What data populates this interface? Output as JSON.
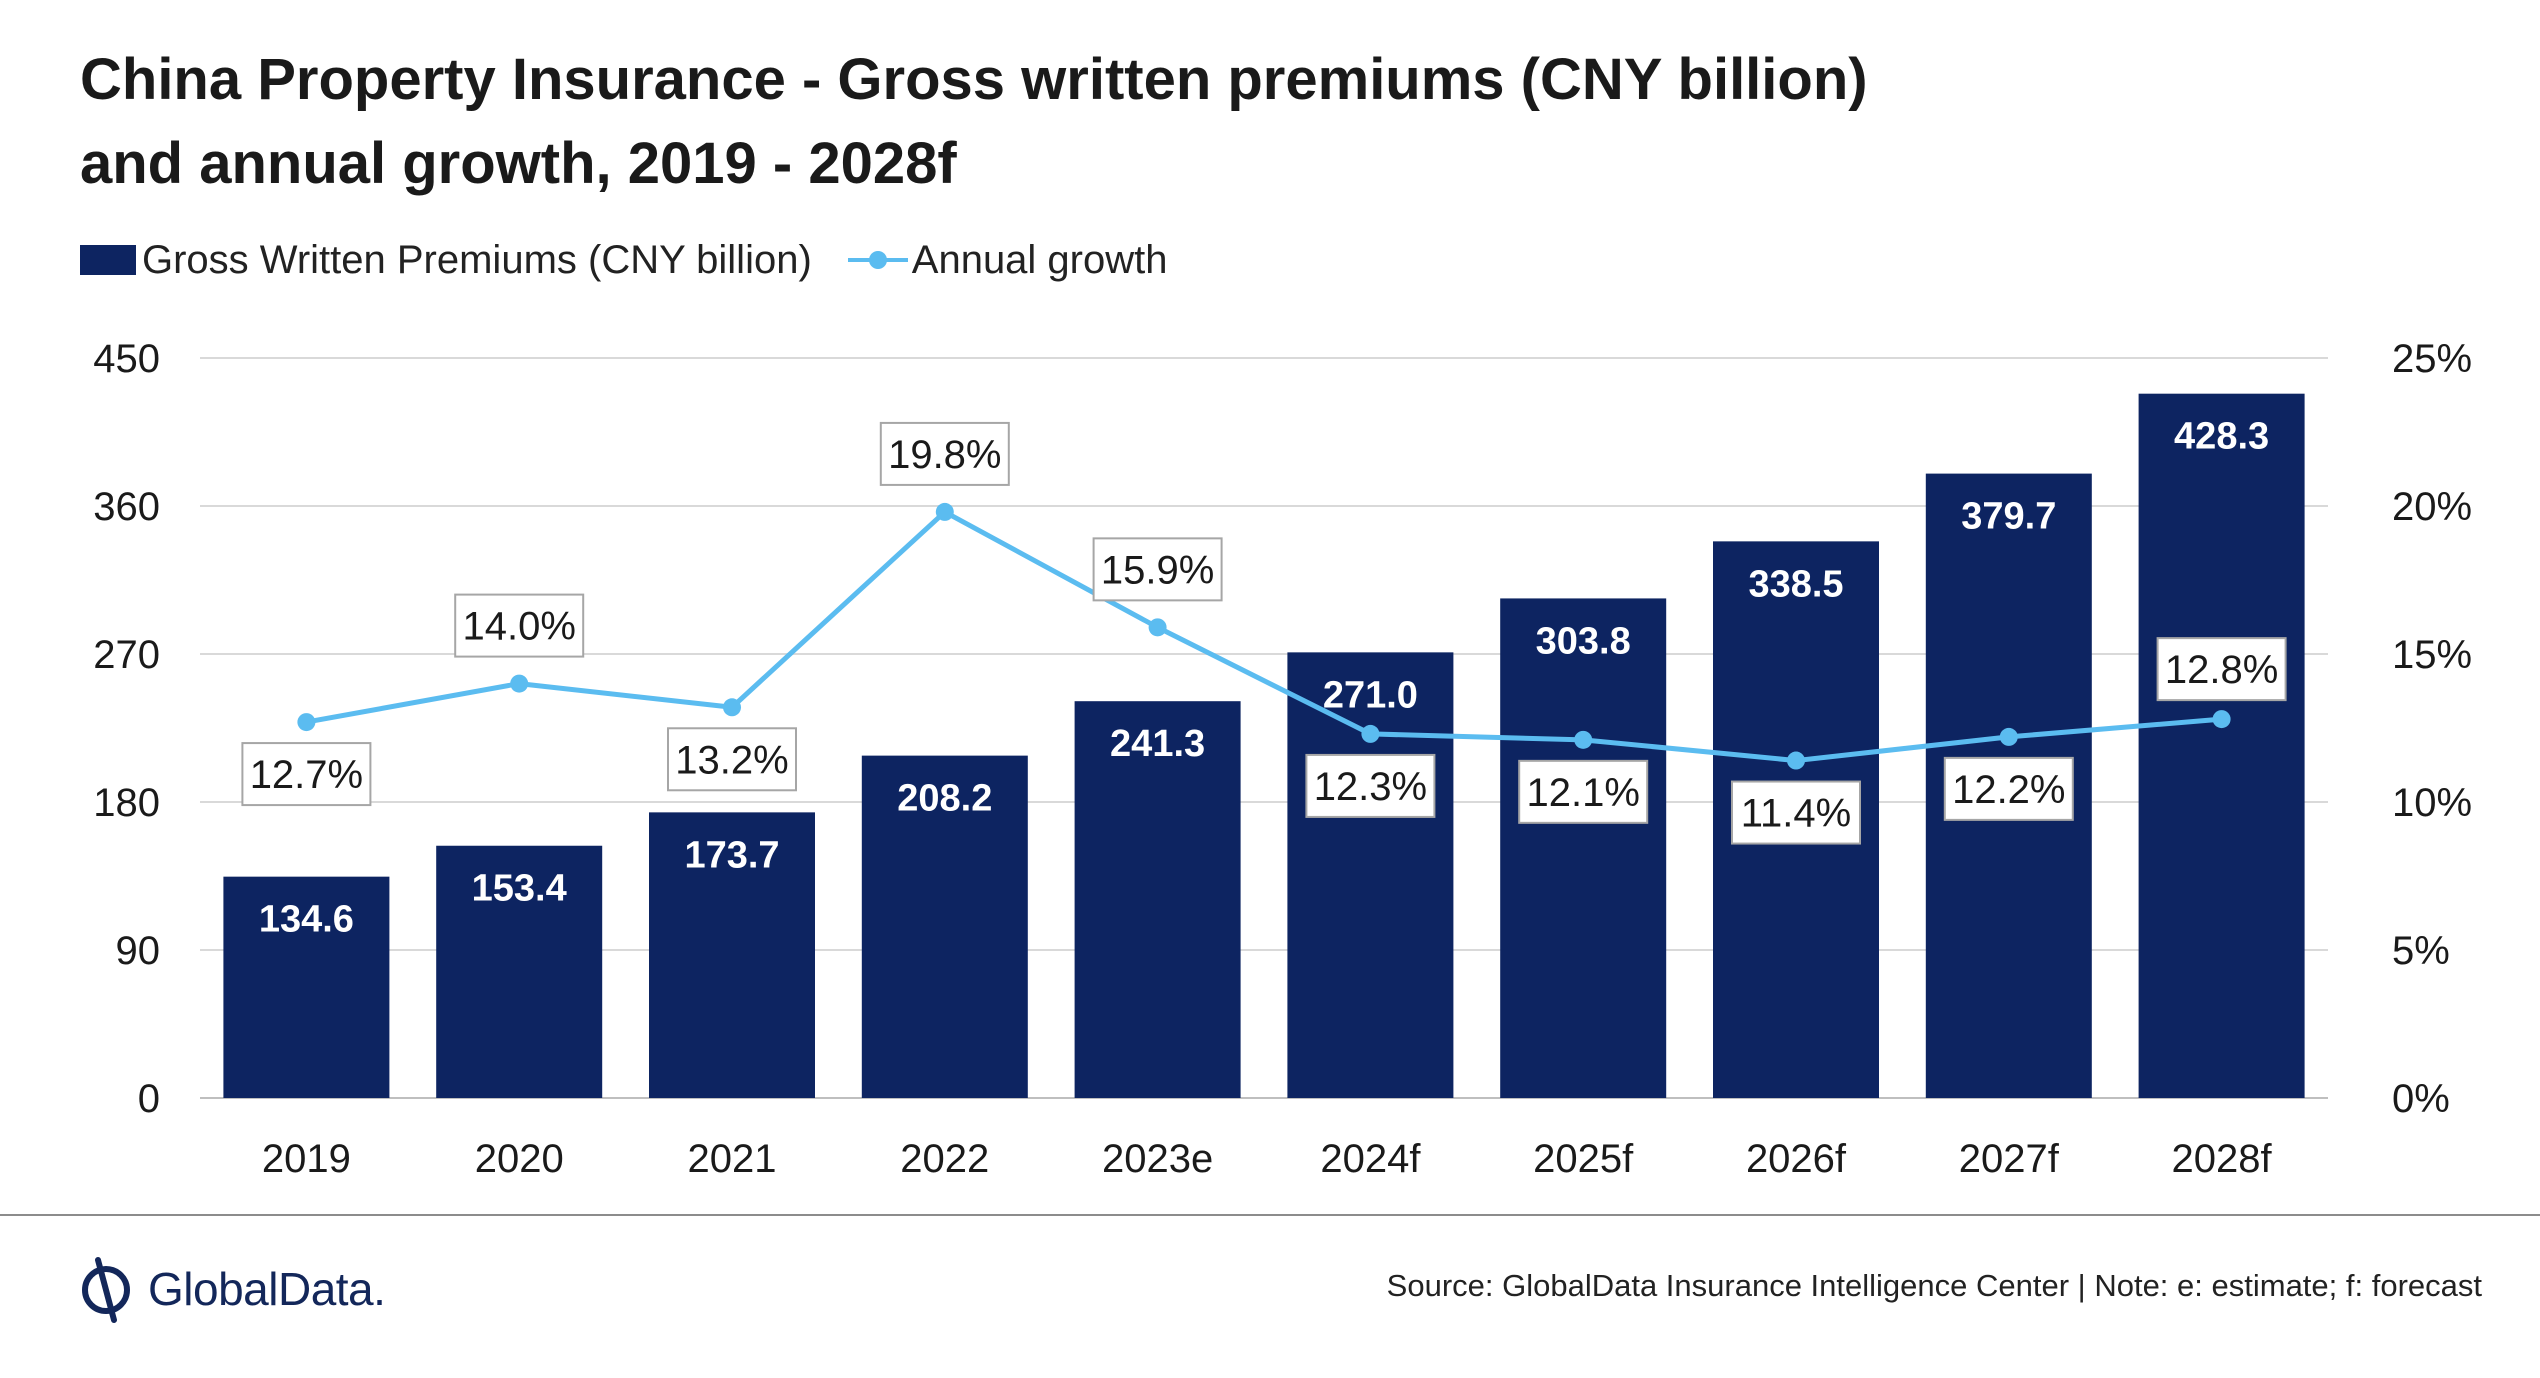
{
  "title_line1": "China Property Insurance - Gross written premiums (CNY billion)",
  "title_line2": "and annual growth, 2019 - 2028f",
  "legend": {
    "bars": "Gross Written Premiums (CNY billion)",
    "line": "Annual growth"
  },
  "colors": {
    "bar": "#0d2461",
    "line": "#5bbcf0",
    "logo": "#13275a"
  },
  "chart_data": {
    "type": "bar",
    "categories": [
      "2019",
      "2020",
      "2021",
      "2022",
      "2023e",
      "2024f",
      "2025f",
      "2026f",
      "2027f",
      "2028f"
    ],
    "series": [
      {
        "name": "Gross Written Premiums (CNY billion)",
        "type": "bar",
        "axis": "left",
        "values": [
          134.6,
          153.4,
          173.7,
          208.2,
          241.3,
          271.0,
          303.8,
          338.5,
          379.7,
          428.3
        ],
        "labels": [
          "134.6",
          "153.4",
          "173.7",
          "208.2",
          "241.3",
          "271.0",
          "303.8",
          "338.5",
          "379.7",
          "428.3"
        ]
      },
      {
        "name": "Annual growth",
        "type": "line",
        "axis": "right",
        "values": [
          12.7,
          14.0,
          13.2,
          19.8,
          15.9,
          12.3,
          12.1,
          11.4,
          12.2,
          12.8
        ],
        "labels": [
          "12.7%",
          "14.0%",
          "13.2%",
          "19.8%",
          "15.9%",
          "12.3%",
          "12.1%",
          "11.4%",
          "12.2%",
          "12.8%"
        ]
      }
    ],
    "y_left": {
      "min": 0,
      "max": 450,
      "ticks": [
        "0",
        "90",
        "180",
        "270",
        "360",
        "450"
      ]
    },
    "y_right": {
      "min": 0,
      "max": 25,
      "ticks": [
        "0%",
        "5%",
        "10%",
        "15%",
        "20%",
        "25%"
      ]
    },
    "grid": true,
    "legend_position": "top-left"
  },
  "logo": {
    "text": "GlobalData."
  },
  "source": "Source: GlobalData Insurance Intelligence Center | Note: e: estimate; f: forecast"
}
